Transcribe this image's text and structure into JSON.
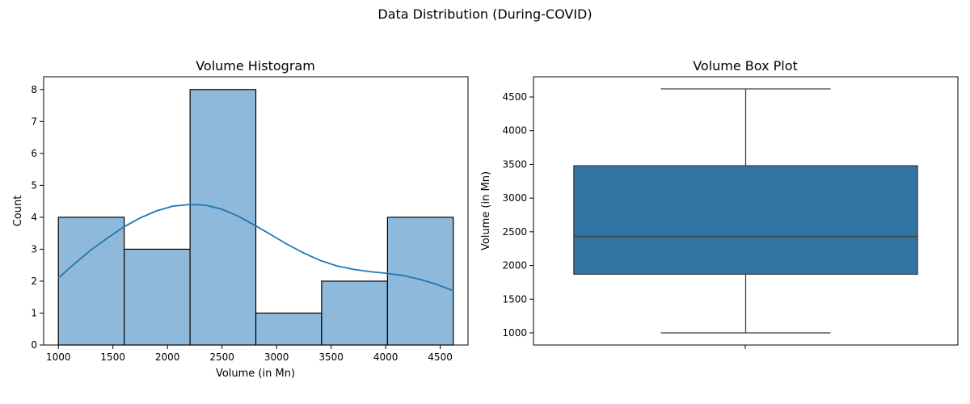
{
  "figure": {
    "suptitle": "Data Distribution (During-COVID)"
  },
  "colors": {
    "hist_fill": "#8fb9da",
    "kde_line": "#1f77b4",
    "box_fill": "#3274a1",
    "edge": "#000000",
    "whisker": "#3f3f3f"
  },
  "chart_data": [
    {
      "type": "histogram",
      "title": "Volume Histogram",
      "xlabel": "Volume (in Mn)",
      "ylabel": "Count",
      "xlim": [
        865,
        4755
      ],
      "ylim": [
        0,
        8.4
      ],
      "xticks": [
        1000,
        1500,
        2000,
        2500,
        3000,
        3500,
        4000,
        4500
      ],
      "yticks": [
        0,
        1,
        2,
        3,
        4,
        5,
        6,
        7,
        8
      ],
      "bins": [
        {
          "start": 1000,
          "end": 1603,
          "count": 4
        },
        {
          "start": 1603,
          "end": 2207,
          "count": 3
        },
        {
          "start": 2207,
          "end": 2810,
          "count": 8
        },
        {
          "start": 2810,
          "end": 3413,
          "count": 1
        },
        {
          "start": 3413,
          "end": 4017,
          "count": 2
        },
        {
          "start": 4017,
          "end": 4620,
          "count": 4
        }
      ],
      "kde": {
        "x": [
          1000,
          1150,
          1300,
          1450,
          1600,
          1750,
          1900,
          2050,
          2200,
          2350,
          2500,
          2650,
          2800,
          2950,
          3100,
          3250,
          3400,
          3550,
          3700,
          3850,
          4000,
          4150,
          4300,
          4450,
          4620
        ],
        "y": [
          2.1,
          2.55,
          2.98,
          3.35,
          3.7,
          3.98,
          4.2,
          4.35,
          4.4,
          4.38,
          4.25,
          4.03,
          3.75,
          3.45,
          3.15,
          2.88,
          2.65,
          2.48,
          2.37,
          2.3,
          2.25,
          2.18,
          2.07,
          1.92,
          1.7
        ]
      }
    },
    {
      "type": "box",
      "title": "Volume Box Plot",
      "xlabel": "",
      "ylabel": "Volume (in Mn)",
      "ylim": [
        820,
        4800
      ],
      "yticks": [
        1000,
        1500,
        2000,
        2500,
        3000,
        3500,
        4000,
        4500
      ],
      "box": {
        "whisker_low": 1000,
        "q1": 1870,
        "median": 2430,
        "q3": 3480,
        "whisker_high": 4620
      }
    }
  ]
}
